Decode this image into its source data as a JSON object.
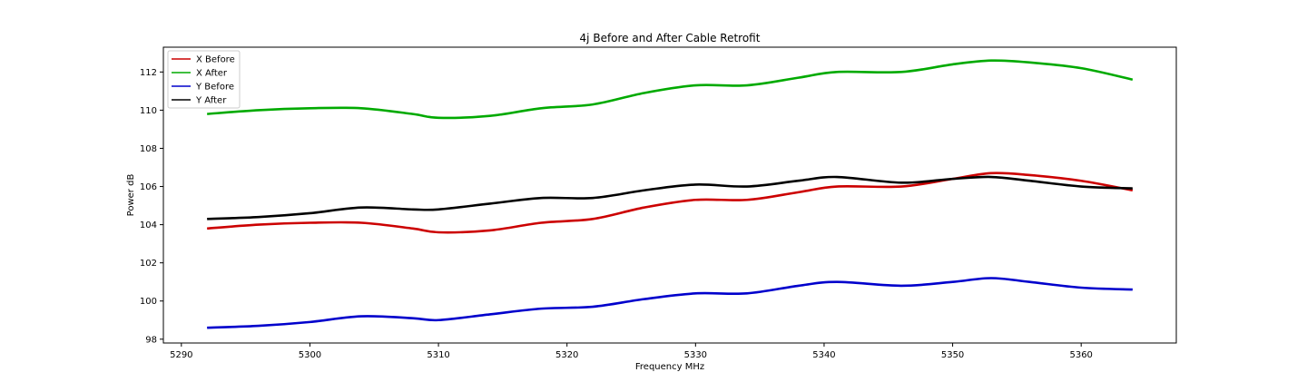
{
  "chart_data": {
    "type": "line",
    "title": "4j Before and After Cable Retrofit",
    "xlabel": "Frequency MHz",
    "ylabel": "Power dB",
    "xlim": [
      5288.6,
      5367.4
    ],
    "ylim": [
      97.8,
      113.3
    ],
    "xticks": [
      5290,
      5300,
      5310,
      5320,
      5330,
      5340,
      5350,
      5360
    ],
    "yticks": [
      98,
      100,
      102,
      104,
      106,
      108,
      110,
      112
    ],
    "grid": false,
    "legend_position": "top-left",
    "x": [
      5292,
      5296,
      5300,
      5304,
      5308,
      5310,
      5314,
      5318,
      5322,
      5326,
      5330,
      5334,
      5338,
      5341,
      5346,
      5350,
      5353,
      5356,
      5360,
      5364
    ],
    "series": [
      {
        "name": "X Before",
        "color": "#cc0000",
        "values": [
          103.8,
          104.0,
          104.1,
          104.1,
          103.8,
          103.6,
          103.7,
          104.1,
          104.3,
          104.9,
          105.3,
          105.3,
          105.7,
          106.0,
          106.0,
          106.4,
          106.7,
          106.6,
          106.3,
          105.8
        ]
      },
      {
        "name": "X After",
        "color": "#00aa00",
        "values": [
          109.8,
          110.0,
          110.1,
          110.1,
          109.8,
          109.6,
          109.7,
          110.1,
          110.3,
          110.9,
          111.3,
          111.3,
          111.7,
          112.0,
          112.0,
          112.4,
          112.6,
          112.5,
          112.2,
          111.6
        ]
      },
      {
        "name": "Y Before",
        "color": "#0000cc",
        "values": [
          98.6,
          98.7,
          98.9,
          99.2,
          99.1,
          99.0,
          99.3,
          99.6,
          99.7,
          100.1,
          100.4,
          100.4,
          100.8,
          101.0,
          100.8,
          101.0,
          101.2,
          101.0,
          100.7,
          100.6
        ]
      },
      {
        "name": "Y After",
        "color": "#000000",
        "values": [
          104.3,
          104.4,
          104.6,
          104.9,
          104.8,
          104.8,
          105.1,
          105.4,
          105.4,
          105.8,
          106.1,
          106.0,
          106.3,
          106.5,
          106.2,
          106.4,
          106.5,
          106.3,
          106.0,
          105.9
        ]
      }
    ]
  }
}
